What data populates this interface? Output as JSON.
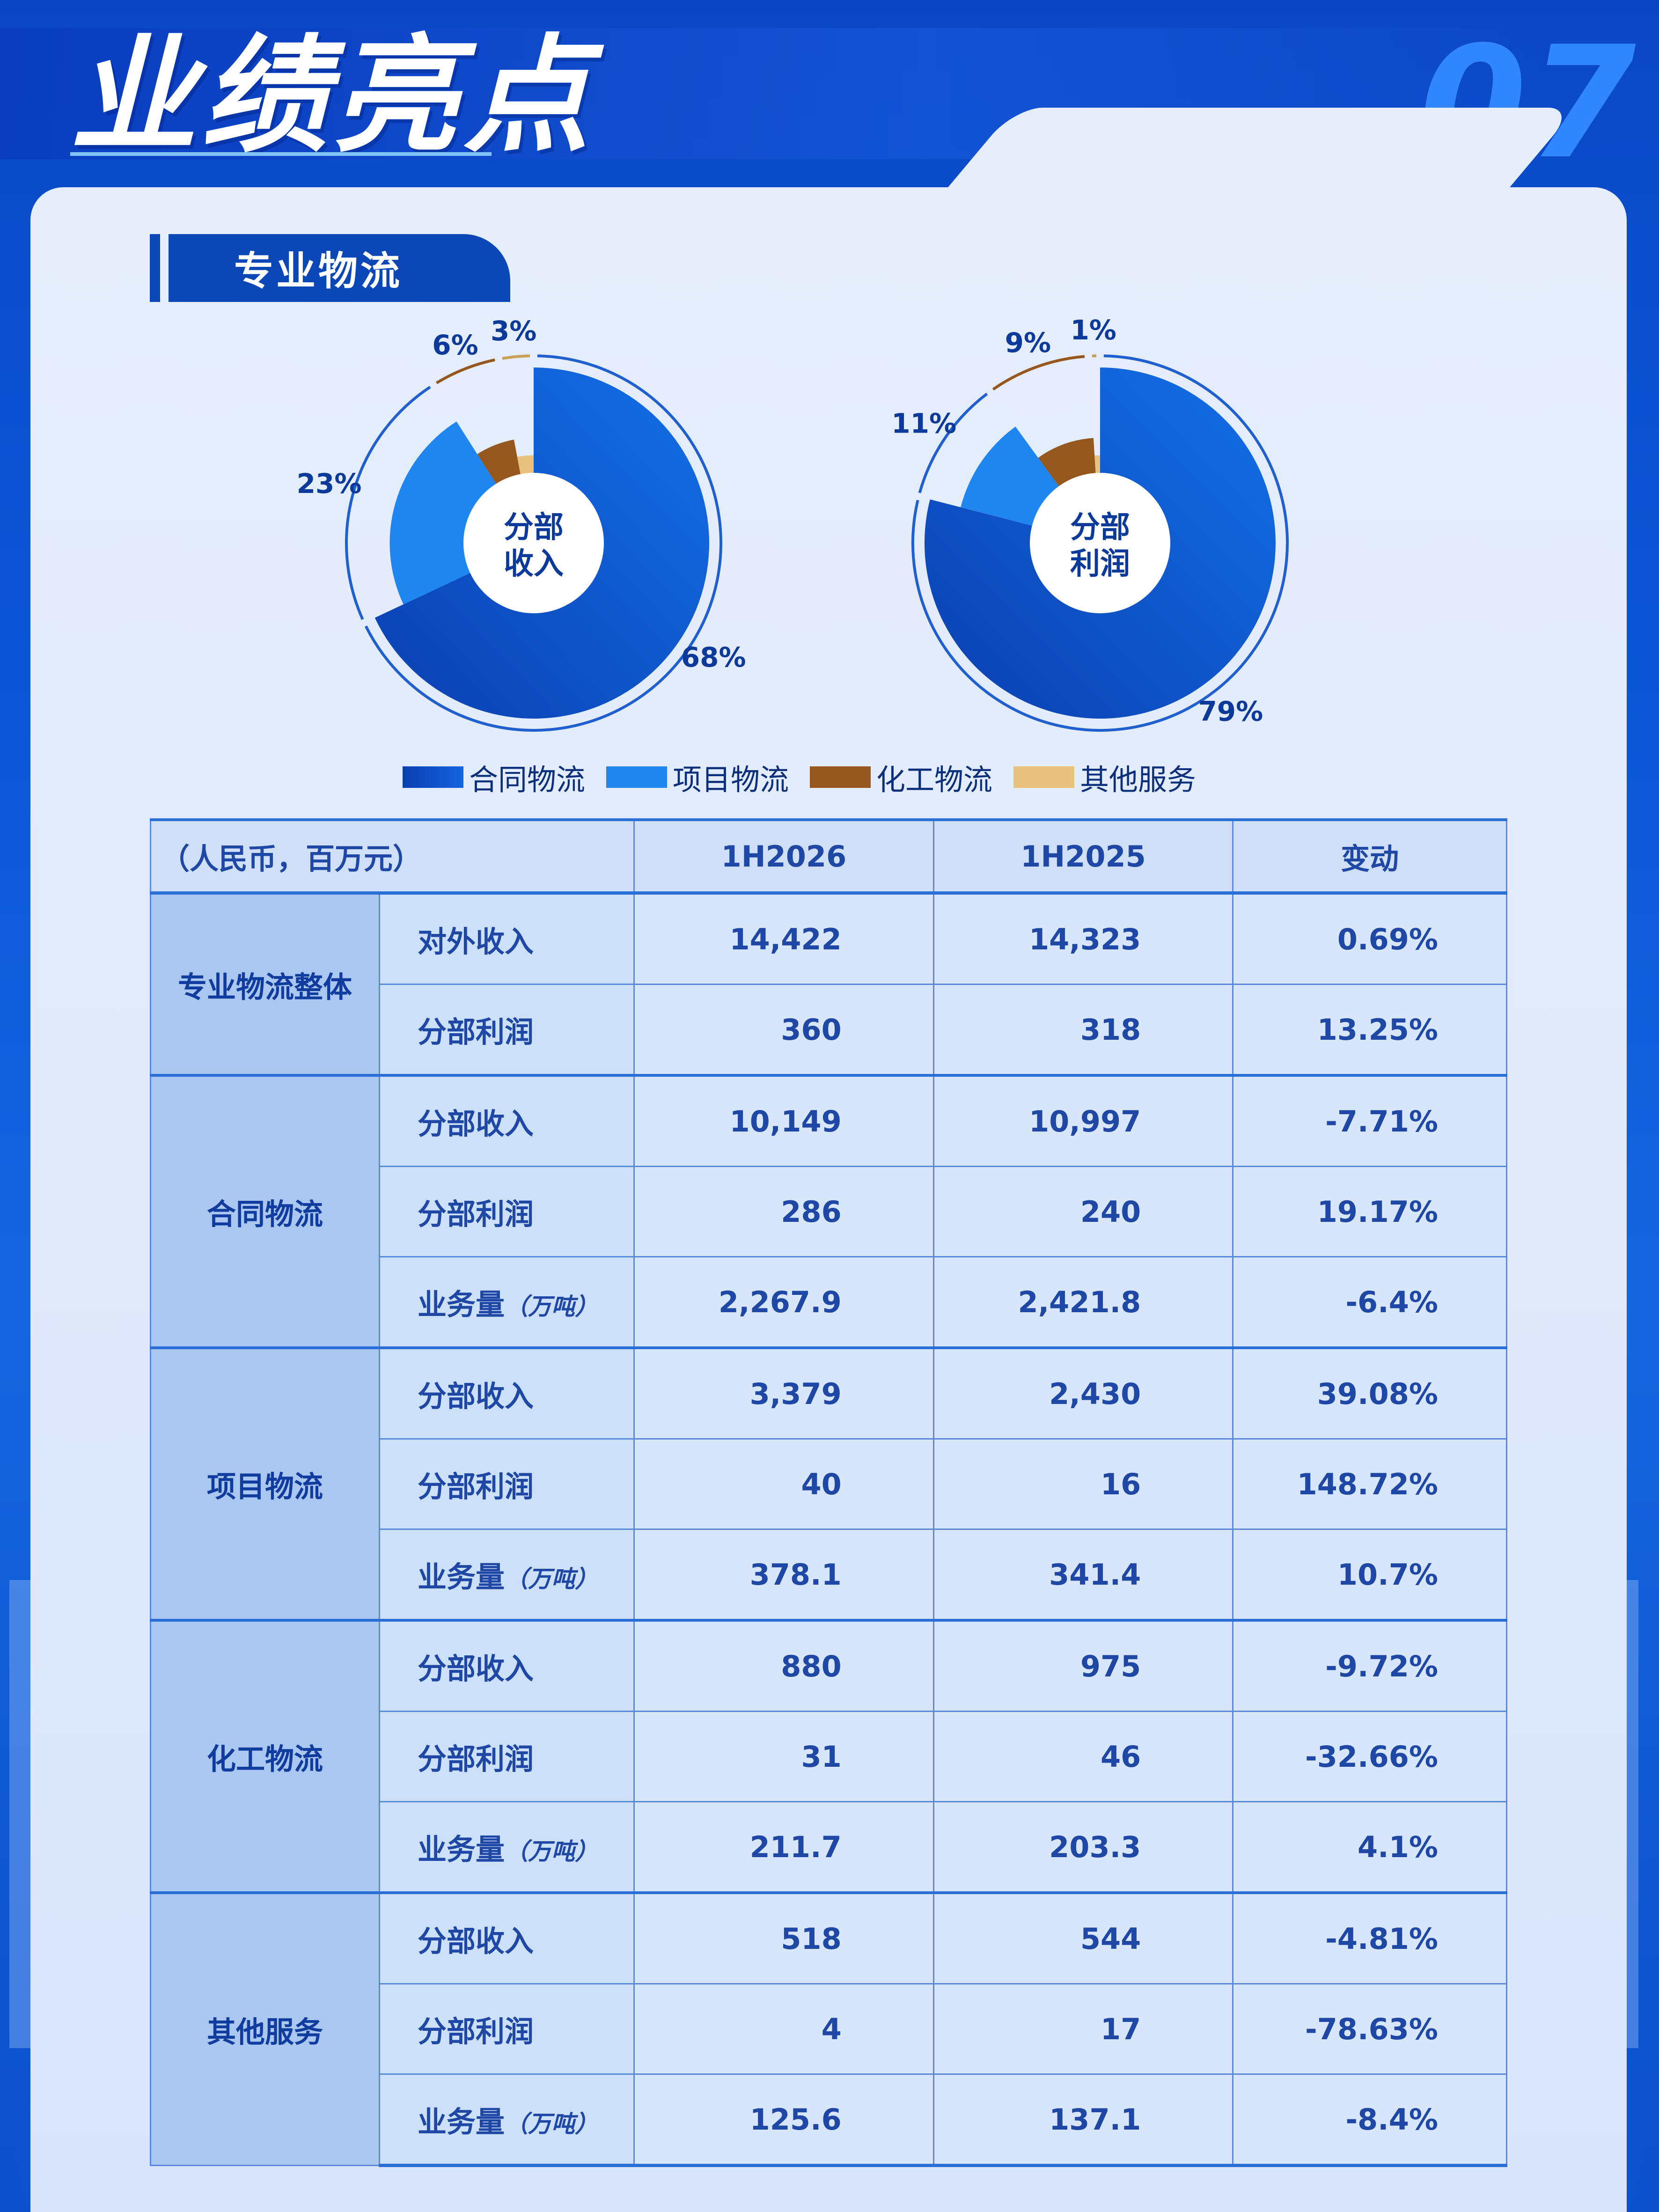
{
  "header": {
    "title": "业绩亮点",
    "page_number": "07"
  },
  "section": {
    "title": "专业物流"
  },
  "legend": [
    {
      "label": "合同物流",
      "color": "#0e5ad6"
    },
    {
      "label": "项目物流",
      "color": "#1f86f0"
    },
    {
      "label": "化工物流",
      "color": "#96571e"
    },
    {
      "label": "其他服务",
      "color": "#e9c27e"
    }
  ],
  "chart_data": [
    {
      "type": "pie",
      "title": "分部收入",
      "categories": [
        "合同物流",
        "项目物流",
        "化工物流",
        "其他服务"
      ],
      "values": [
        68,
        23,
        6,
        3
      ],
      "labels": [
        "68%",
        "23%",
        "6%",
        "3%"
      ]
    },
    {
      "type": "pie",
      "title": "分部利润",
      "categories": [
        "合同物流",
        "项目物流",
        "化工物流",
        "其他服务"
      ],
      "values": [
        79,
        11,
        9,
        1
      ],
      "labels": [
        "79%",
        "11%",
        "9%",
        "1%"
      ]
    }
  ],
  "table": {
    "headers": [
      "（人民币，百万元）",
      "1H2026",
      "1H2025",
      "变动"
    ],
    "groups": [
      {
        "name": "专业物流整体",
        "rows": [
          {
            "metric": "对外收入",
            "unit": "",
            "v2026": "14,422",
            "v2025": "14,323",
            "change": "0.69%"
          },
          {
            "metric": "分部利润",
            "unit": "",
            "v2026": "360",
            "v2025": "318",
            "change": "13.25%"
          }
        ]
      },
      {
        "name": "合同物流",
        "rows": [
          {
            "metric": "分部收入",
            "unit": "",
            "v2026": "10,149",
            "v2025": "10,997",
            "change": "-7.71%"
          },
          {
            "metric": "分部利润",
            "unit": "",
            "v2026": "286",
            "v2025": "240",
            "change": "19.17%"
          },
          {
            "metric": "业务量",
            "unit": "（万吨）",
            "v2026": "2,267.9",
            "v2025": "2,421.8",
            "change": "-6.4%"
          }
        ]
      },
      {
        "name": "项目物流",
        "rows": [
          {
            "metric": "分部收入",
            "unit": "",
            "v2026": "3,379",
            "v2025": "2,430",
            "change": "39.08%"
          },
          {
            "metric": "分部利润",
            "unit": "",
            "v2026": "40",
            "v2025": "16",
            "change": "148.72%"
          },
          {
            "metric": "业务量",
            "unit": "（万吨）",
            "v2026": "378.1",
            "v2025": "341.4",
            "change": "10.7%"
          }
        ]
      },
      {
        "name": "化工物流",
        "rows": [
          {
            "metric": "分部收入",
            "unit": "",
            "v2026": "880",
            "v2025": "975",
            "change": "-9.72%"
          },
          {
            "metric": "分部利润",
            "unit": "",
            "v2026": "31",
            "v2025": "46",
            "change": "-32.66%"
          },
          {
            "metric": "业务量",
            "unit": "（万吨）",
            "v2026": "211.7",
            "v2025": "203.3",
            "change": "4.1%"
          }
        ]
      },
      {
        "name": "其他服务",
        "rows": [
          {
            "metric": "分部收入",
            "unit": "",
            "v2026": "518",
            "v2025": "544",
            "change": "-4.81%"
          },
          {
            "metric": "分部利润",
            "unit": "",
            "v2026": "4",
            "v2025": "17",
            "change": "-78.63%"
          },
          {
            "metric": "业务量",
            "unit": "（万吨）",
            "v2026": "125.6",
            "v2025": "137.1",
            "change": "-8.4%"
          }
        ]
      }
    ]
  }
}
